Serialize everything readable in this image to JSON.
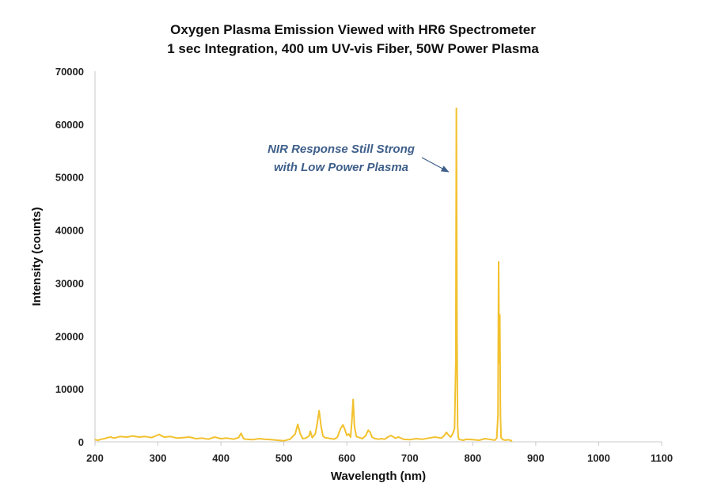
{
  "chart_data": {
    "type": "line",
    "title": "Oxygen Plasma Emission Viewed with HR6 Spectrometer",
    "subtitle": "1 sec Integration, 400 um UV-vis Fiber, 50W Power Plasma",
    "xlabel": "Wavelength (nm)",
    "ylabel": "Intensity (counts)",
    "xlim": [
      200,
      1100
    ],
    "ylim": [
      0,
      70000
    ],
    "xticks": [
      "200",
      "300",
      "400",
      "500",
      "600",
      "700",
      "800",
      "900",
      "1000",
      "1100"
    ],
    "yticks": [
      "0",
      "10000",
      "20000",
      "30000",
      "40000",
      "50000",
      "60000",
      "70000"
    ],
    "grid": false,
    "legend": "none",
    "series_color": "#f2c12e",
    "series": [
      {
        "x": [
          200,
          205,
          210,
          215,
          220,
          225,
          230,
          240,
          250,
          260,
          270,
          280,
          290,
          298,
          302,
          306,
          310,
          320,
          330,
          340,
          350,
          360,
          370,
          380,
          390,
          400,
          410,
          420,
          428,
          432,
          436,
          440,
          450,
          460,
          470,
          480,
          490,
          500,
          510,
          518,
          522,
          526,
          530,
          535,
          540,
          542,
          545,
          550,
          553,
          556,
          559,
          562,
          565,
          570,
          575,
          580,
          585,
          590,
          594,
          597,
          600,
          603,
          606,
          608,
          610,
          612,
          615,
          620,
          625,
          630,
          634,
          637,
          640,
          645,
          650,
          655,
          660,
          665,
          670,
          677,
          682,
          690,
          700,
          710,
          720,
          730,
          740,
          750,
          755,
          758,
          762,
          765,
          768,
          771,
          773,
          774,
          775,
          776,
          777,
          778,
          780,
          785,
          790,
          800,
          810,
          820,
          830,
          835,
          838,
          840,
          841,
          842,
          843,
          844,
          845,
          848,
          852,
          855,
          860,
          862
        ],
        "y": [
          400,
          300,
          500,
          600,
          800,
          900,
          700,
          1000,
          900,
          1100,
          900,
          1000,
          800,
          1200,
          1400,
          1100,
          900,
          1000,
          700,
          800,
          900,
          600,
          700,
          500,
          900,
          600,
          700,
          500,
          800,
          1600,
          600,
          500,
          400,
          600,
          500,
          400,
          300,
          200,
          500,
          1500,
          3300,
          1500,
          600,
          700,
          1100,
          2000,
          800,
          1500,
          3500,
          5900,
          3000,
          1100,
          800,
          700,
          600,
          500,
          900,
          2500,
          3200,
          2300,
          1200,
          1500,
          900,
          4000,
          8000,
          3000,
          1000,
          800,
          600,
          1200,
          2200,
          1800,
          900,
          600,
          500,
          600,
          500,
          900,
          1200,
          700,
          900,
          500,
          400,
          600,
          500,
          700,
          900,
          700,
          1200,
          1800,
          1200,
          900,
          1500,
          2500,
          15000,
          63000,
          20000,
          3000,
          1000,
          500,
          400,
          300,
          500,
          400,
          300,
          600,
          400,
          300,
          700,
          5000,
          34000,
          15000,
          24000,
          5000,
          800,
          400,
          300,
          400,
          300,
          100
        ]
      }
    ],
    "annotation": {
      "line1": "NIR Response Still Strong",
      "line2": "with Low Power Plasma",
      "arrow_color": "#3f5f8a",
      "points_to_x": 774,
      "points_to_y": 51000
    }
  }
}
